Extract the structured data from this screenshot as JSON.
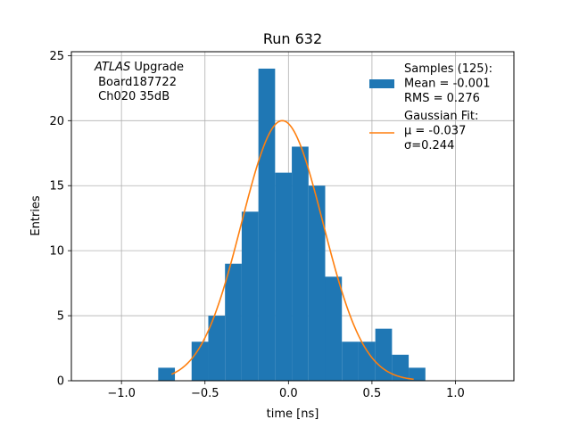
{
  "chart_data": {
    "type": "bar",
    "title": "Run 632",
    "xlabel": "time [ns]",
    "ylabel": "Entries",
    "xlim": [
      -1.3,
      1.35
    ],
    "ylim": [
      0,
      25.3
    ],
    "xticks": [
      -1.0,
      -0.5,
      0.0,
      0.5,
      1.0
    ],
    "xtick_labels": [
      "−1.0",
      "−0.5",
      "0.0",
      "0.5",
      "1.0"
    ],
    "yticks": [
      0,
      5,
      10,
      15,
      20,
      25
    ],
    "ytick_labels": [
      "0",
      "5",
      "10",
      "15",
      "20",
      "25"
    ],
    "grid": true,
    "bar_color": "#1f77b4",
    "fit_color": "#ff7f0e",
    "histogram": {
      "bin_width": 0.1,
      "bins": [
        {
          "x": -0.78,
          "count": 1
        },
        {
          "x": -0.58,
          "count": 3
        },
        {
          "x": -0.48,
          "count": 5
        },
        {
          "x": -0.38,
          "count": 9
        },
        {
          "x": -0.28,
          "count": 13
        },
        {
          "x": -0.18,
          "count": 24
        },
        {
          "x": -0.08,
          "count": 16
        },
        {
          "x": 0.02,
          "count": 18
        },
        {
          "x": 0.12,
          "count": 15
        },
        {
          "x": 0.22,
          "count": 8
        },
        {
          "x": 0.32,
          "count": 3
        },
        {
          "x": 0.42,
          "count": 3
        },
        {
          "x": 0.52,
          "count": 4
        },
        {
          "x": 0.62,
          "count": 2
        },
        {
          "x": 0.72,
          "count": 1
        }
      ]
    },
    "gaussian_fit": {
      "amplitude": 20.0,
      "mu": -0.037,
      "sigma": 0.244,
      "x_range": [
        -0.7,
        0.75
      ]
    },
    "annotation": {
      "line1_italic": "ATLAS",
      "line1_rest": " Upgrade",
      "line2": " Board187722",
      "line3": " Ch020 35dB"
    },
    "legend": {
      "placement": "top-right",
      "entries": [
        {
          "kind": "patch",
          "lines": [
            "Samples (125):",
            " Mean = -0.001",
            " RMS = 0.276"
          ]
        },
        {
          "kind": "line",
          "lines": [
            "Gaussian Fit:",
            " μ = -0.037",
            "σ=0.244"
          ]
        }
      ]
    }
  }
}
